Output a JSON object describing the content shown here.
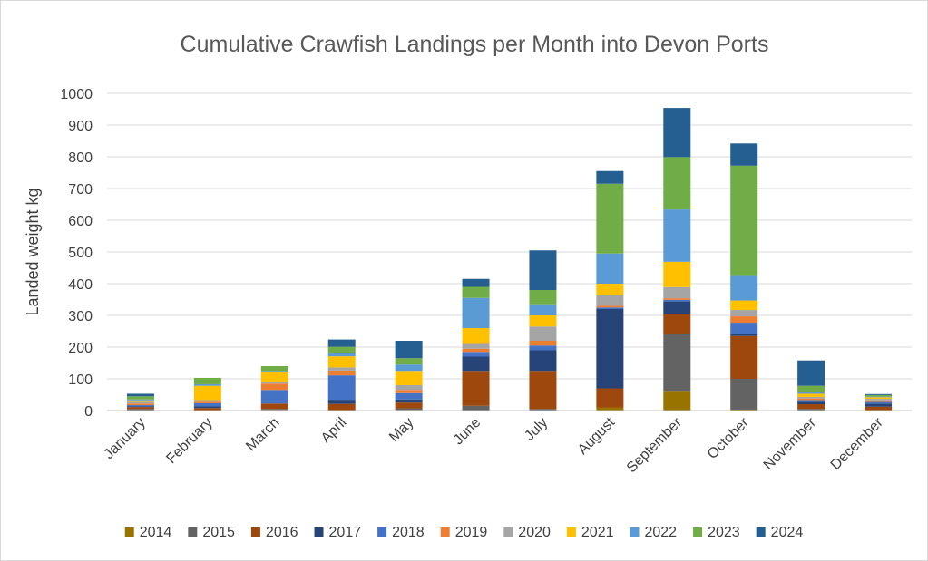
{
  "chart_data": {
    "type": "bar",
    "stacked": true,
    "title": "Cumulative  Crawfish Landings per Month into Devon Ports",
    "ylabel": "Landed weight kg",
    "xlabel": "",
    "ylim": [
      0,
      1000
    ],
    "yticks": [
      0,
      100,
      200,
      300,
      400,
      500,
      600,
      700,
      800,
      900,
      1000
    ],
    "grid": true,
    "legend_position": "bottom",
    "categories": [
      "January",
      "February",
      "March",
      "April",
      "May",
      "June",
      "July",
      "August",
      "September",
      "October",
      "November",
      "December"
    ],
    "series": [
      {
        "name": "2014",
        "color": "#997300",
        "values": [
          0,
          0,
          2,
          0,
          2,
          0,
          0,
          10,
          62,
          3,
          0,
          0
        ]
      },
      {
        "name": "2015",
        "color": "#636363",
        "values": [
          5,
          0,
          3,
          0,
          5,
          15,
          5,
          0,
          178,
          97,
          5,
          0
        ]
      },
      {
        "name": "2016",
        "color": "#9e480e",
        "values": [
          6,
          8,
          17,
          21,
          18,
          110,
          120,
          60,
          64,
          135,
          15,
          12
        ]
      },
      {
        "name": "2017",
        "color": "#264478",
        "values": [
          2,
          5,
          0,
          13,
          10,
          45,
          65,
          250,
          40,
          7,
          8,
          10
        ]
      },
      {
        "name": "2018",
        "color": "#4472c4",
        "values": [
          4,
          10,
          43,
          77,
          20,
          15,
          15,
          5,
          5,
          35,
          5,
          5
        ]
      },
      {
        "name": "2019",
        "color": "#ed7d31",
        "values": [
          5,
          5,
          20,
          15,
          10,
          10,
          15,
          5,
          5,
          20,
          5,
          5
        ]
      },
      {
        "name": "2020",
        "color": "#a5a5a5",
        "values": [
          5,
          5,
          5,
          10,
          15,
          15,
          45,
          35,
          35,
          20,
          5,
          5
        ]
      },
      {
        "name": "2021",
        "color": "#ffc000",
        "values": [
          5,
          45,
          30,
          35,
          45,
          50,
          35,
          35,
          80,
          30,
          10,
          5
        ]
      },
      {
        "name": "2022",
        "color": "#5b9bd5",
        "values": [
          3,
          5,
          5,
          10,
          20,
          95,
          35,
          95,
          165,
          80,
          5,
          2
        ]
      },
      {
        "name": "2023",
        "color": "#70ad47",
        "values": [
          10,
          20,
          15,
          20,
          20,
          35,
          45,
          220,
          165,
          345,
          20,
          5
        ]
      },
      {
        "name": "2024",
        "color": "#255e91",
        "values": [
          8,
          0,
          0,
          23,
          55,
          25,
          125,
          40,
          155,
          70,
          80,
          3
        ]
      }
    ]
  }
}
